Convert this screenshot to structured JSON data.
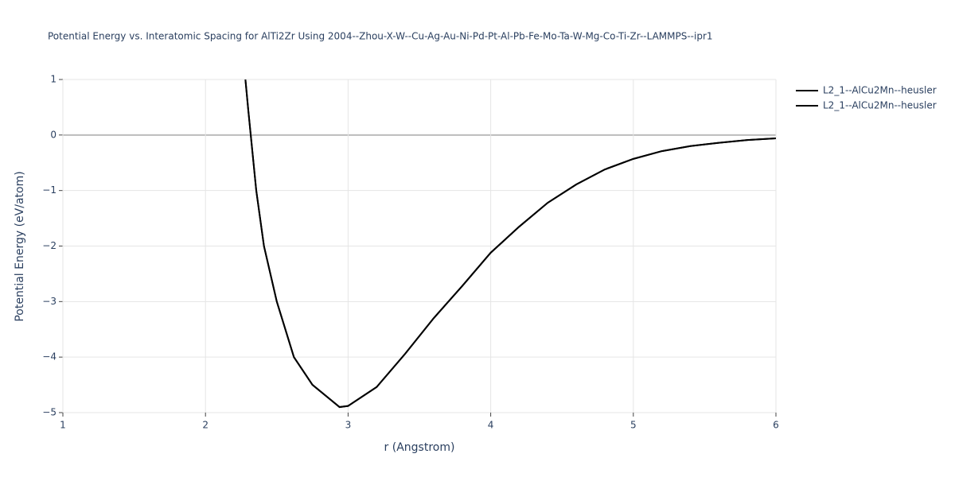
{
  "chart_data": {
    "type": "line",
    "title": "Potential Energy vs. Interatomic Spacing for AlTi2Zr Using 2004--Zhou-X-W--Cu-Ag-Au-Ni-Pd-Pt-Al-Pb-Fe-Mo-Ta-W-Mg-Co-Ti-Zr--LAMMPS--ipr1",
    "x_label": "r (Angstrom)",
    "y_label": "Potential Energy (eV/atom)",
    "x": [
      2.28,
      2.3,
      2.356,
      2.41,
      2.5,
      2.62,
      2.75,
      2.94,
      3.0,
      3.2,
      3.4,
      3.6,
      3.8,
      4.0,
      4.2,
      4.4,
      4.6,
      4.8,
      5.0,
      5.2,
      5.4,
      5.6,
      5.8,
      6.0
    ],
    "series": [
      {
        "name": "L2_1--AlCu2Mn--heusler",
        "color": "#000000",
        "values": [
          1.0,
          0.45,
          -1.0,
          -2.0,
          -3.0,
          -4.0,
          -4.5,
          -4.9,
          -4.88,
          -4.54,
          -3.94,
          -3.3,
          -2.72,
          -2.12,
          -1.65,
          -1.22,
          -0.89,
          -0.62,
          -0.43,
          -0.29,
          -0.2,
          -0.14,
          -0.09,
          -0.06
        ]
      },
      {
        "name": "L2_1--AlCu2Mn--heusler",
        "color": "#000000",
        "values": [
          1.0,
          0.45,
          -1.0,
          -2.0,
          -3.0,
          -4.0,
          -4.5,
          -4.9,
          -4.88,
          -4.54,
          -3.94,
          -3.3,
          -2.72,
          -2.12,
          -1.65,
          -1.22,
          -0.89,
          -0.62,
          -0.43,
          -0.29,
          -0.2,
          -0.14,
          -0.09,
          -0.06
        ]
      }
    ],
    "xlim": [
      1,
      6
    ],
    "xticks": [
      1,
      2,
      3,
      4,
      5,
      6
    ],
    "ylim": [
      -5,
      1
    ],
    "yticks": [
      {
        "value": -5,
        "label": "−5"
      },
      {
        "value": -4,
        "label": "−4"
      },
      {
        "value": -3,
        "label": "−3"
      },
      {
        "value": -2,
        "label": "−2"
      },
      {
        "value": -1,
        "label": "−1"
      },
      0,
      1
    ],
    "grid": true
  }
}
